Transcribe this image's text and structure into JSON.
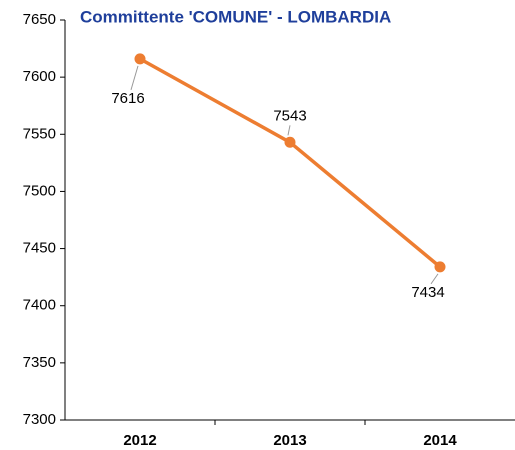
{
  "chart_data": {
    "type": "line",
    "title": "Committente 'COMUNE' - LOMBARDIA",
    "categories": [
      "2012",
      "2013",
      "2014"
    ],
    "series": [
      {
        "name": null,
        "color": "#ed7d31",
        "values": [
          7616,
          7543,
          7434
        ]
      }
    ],
    "ylim": [
      7300,
      7650
    ],
    "yticks": [
      7300,
      7350,
      7400,
      7450,
      7500,
      7550,
      7600,
      7650
    ],
    "grid": false
  }
}
